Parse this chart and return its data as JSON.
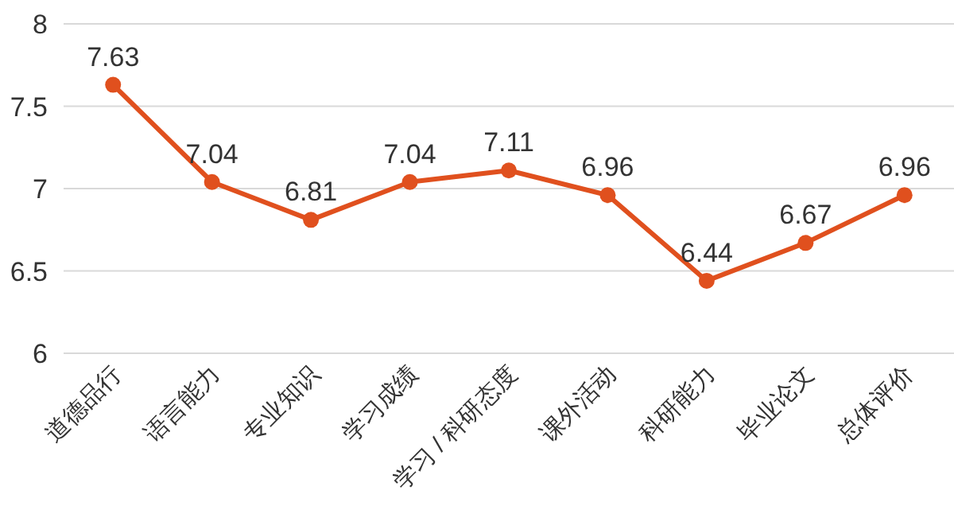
{
  "chart_data": {
    "type": "line",
    "categories": [
      "道德品行",
      "语言能力",
      "专业知识",
      "学习成绩",
      "学习 / 科研态度",
      "课外活动",
      "科研能力",
      "毕业论文",
      "总体评价"
    ],
    "series": [
      {
        "color": "#e0501e",
        "values": [
          7.63,
          7.04,
          6.81,
          7.04,
          7.11,
          6.96,
          6.44,
          6.67,
          6.96
        ]
      }
    ],
    "ylim": [
      6,
      8
    ],
    "yticks": [
      6,
      6.5,
      7,
      7.5,
      8
    ],
    "grid": "y",
    "marker": "circle",
    "line_style": "solid",
    "data_labels": true
  }
}
